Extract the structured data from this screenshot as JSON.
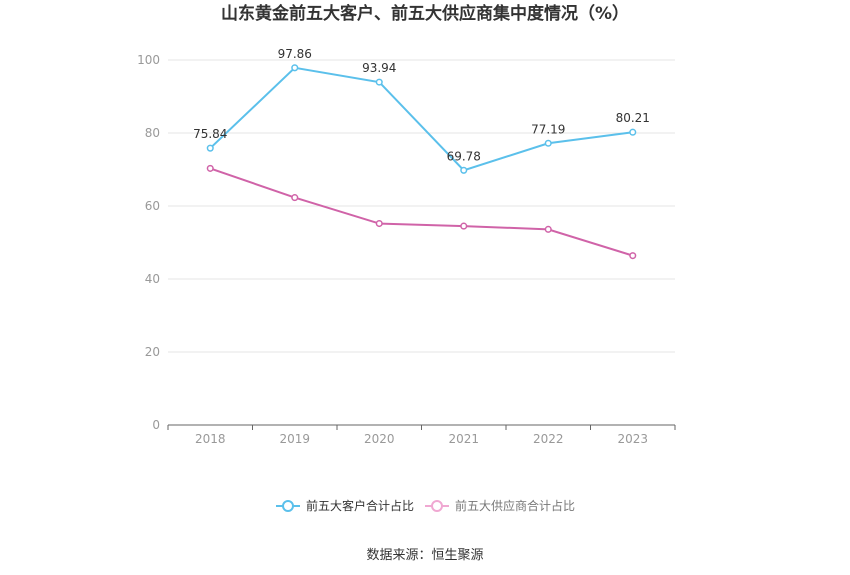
{
  "chart_data": {
    "type": "line",
    "title": "山东黄金前五大客户、前五大供应商集中度情况（%）",
    "categories": [
      "2018",
      "2019",
      "2020",
      "2021",
      "2022",
      "2023"
    ],
    "ylim": [
      0,
      100
    ],
    "yticks": [
      0,
      20,
      40,
      60,
      80,
      100
    ],
    "grid": true,
    "legend_position": "bottom",
    "series": [
      {
        "name": "前五大客户合计占比",
        "color": "#5bc0eb",
        "values": [
          75.84,
          97.86,
          93.94,
          69.78,
          77.19,
          80.21
        ],
        "labels": [
          "75.84",
          "97.86",
          "93.94",
          "69.78",
          "77.19",
          "80.21"
        ]
      },
      {
        "name": "前五大供应商合计占比",
        "color": "#d063a8",
        "values": [
          70.3,
          62.3,
          55.2,
          54.5,
          53.6,
          46.4
        ],
        "labels": []
      }
    ]
  },
  "legend": {
    "label_1": "前五大客户合计占比",
    "label_2": "前五大供应商合计占比"
  },
  "source": "数据来源：恒生聚源"
}
